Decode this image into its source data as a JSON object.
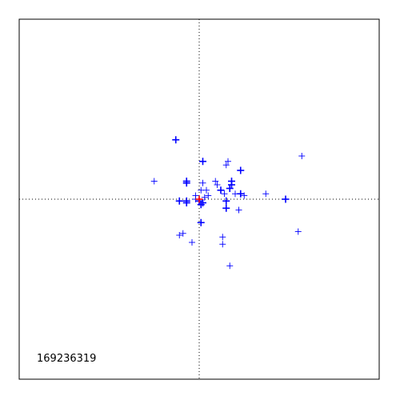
{
  "chart_data": {
    "type": "scatter",
    "title": "",
    "xlabel": "",
    "ylabel": "",
    "xlim": [
      -1,
      1
    ],
    "ylim": [
      -1,
      1
    ],
    "grid": false,
    "crosshair_lines": true,
    "annotation": "169236319",
    "colors": {
      "axis": "#000000",
      "crosshair": "#000000",
      "points": "#0000ff",
      "highlight": "#ff0000"
    },
    "series": [
      {
        "marker": "plus",
        "color": "#0000ff",
        "points": [
          {
            "x": -0.13,
            "y": 0.33,
            "bold": true
          },
          {
            "x": 0.02,
            "y": 0.21,
            "bold": true
          },
          {
            "x": -0.25,
            "y": 0.1,
            "bold": false
          },
          {
            "x": -0.07,
            "y": 0.1,
            "bold": true
          },
          {
            "x": -0.07,
            "y": 0.09,
            "bold": true
          },
          {
            "x": 0.16,
            "y": 0.21,
            "bold": false
          },
          {
            "x": 0.15,
            "y": 0.19,
            "bold": false
          },
          {
            "x": 0.23,
            "y": 0.16,
            "bold": true
          },
          {
            "x": 0.18,
            "y": 0.1,
            "bold": true
          },
          {
            "x": 0.18,
            "y": 0.08,
            "bold": true
          },
          {
            "x": 0.17,
            "y": 0.06,
            "bold": true
          },
          {
            "x": 0.09,
            "y": 0.1,
            "bold": false
          },
          {
            "x": 0.1,
            "y": 0.08,
            "bold": false
          },
          {
            "x": 0.12,
            "y": 0.05,
            "bold": true
          },
          {
            "x": 0.04,
            "y": 0.05,
            "bold": false
          },
          {
            "x": 0.02,
            "y": 0.09,
            "bold": false
          },
          {
            "x": 0.01,
            "y": 0.05,
            "bold": false
          },
          {
            "x": 0.05,
            "y": 0.02,
            "bold": false
          },
          {
            "x": 0.03,
            "y": 0.01,
            "bold": false
          },
          {
            "x": -0.02,
            "y": 0.02,
            "bold": false
          },
          {
            "x": -0.02,
            "y": 0.0,
            "bold": false
          },
          {
            "x": -0.11,
            "y": -0.01,
            "bold": true
          },
          {
            "x": -0.07,
            "y": -0.01,
            "bold": true
          },
          {
            "x": -0.07,
            "y": -0.02,
            "bold": true
          },
          {
            "x": 0.0,
            "y": -0.01,
            "bold": true
          },
          {
            "x": 0.02,
            "y": -0.02,
            "bold": true
          },
          {
            "x": 0.01,
            "y": -0.03,
            "bold": true
          },
          {
            "x": 0.14,
            "y": 0.03,
            "bold": false
          },
          {
            "x": 0.2,
            "y": 0.03,
            "bold": false
          },
          {
            "x": 0.23,
            "y": 0.03,
            "bold": true
          },
          {
            "x": 0.25,
            "y": 0.02,
            "bold": false
          },
          {
            "x": 0.15,
            "y": -0.01,
            "bold": true
          },
          {
            "x": 0.15,
            "y": -0.05,
            "bold": true
          },
          {
            "x": 0.22,
            "y": -0.06,
            "bold": false
          },
          {
            "x": 0.37,
            "y": 0.03,
            "bold": false
          },
          {
            "x": 0.48,
            "y": 0.0,
            "bold": true
          },
          {
            "x": 0.57,
            "y": 0.24,
            "bold": false
          },
          {
            "x": 0.55,
            "y": -0.18,
            "bold": false
          },
          {
            "x": 0.01,
            "y": -0.13,
            "bold": true
          },
          {
            "x": -0.09,
            "y": -0.19,
            "bold": false
          },
          {
            "x": -0.11,
            "y": -0.2,
            "bold": false
          },
          {
            "x": -0.04,
            "y": -0.24,
            "bold": false
          },
          {
            "x": 0.13,
            "y": -0.21,
            "bold": false
          },
          {
            "x": 0.13,
            "y": -0.25,
            "bold": false
          },
          {
            "x": 0.17,
            "y": -0.37,
            "bold": false
          }
        ]
      },
      {
        "marker": "plus",
        "color": "#ff0000",
        "points": [
          {
            "x": 0.0,
            "y": 0.0,
            "bold": true
          }
        ]
      }
    ]
  }
}
